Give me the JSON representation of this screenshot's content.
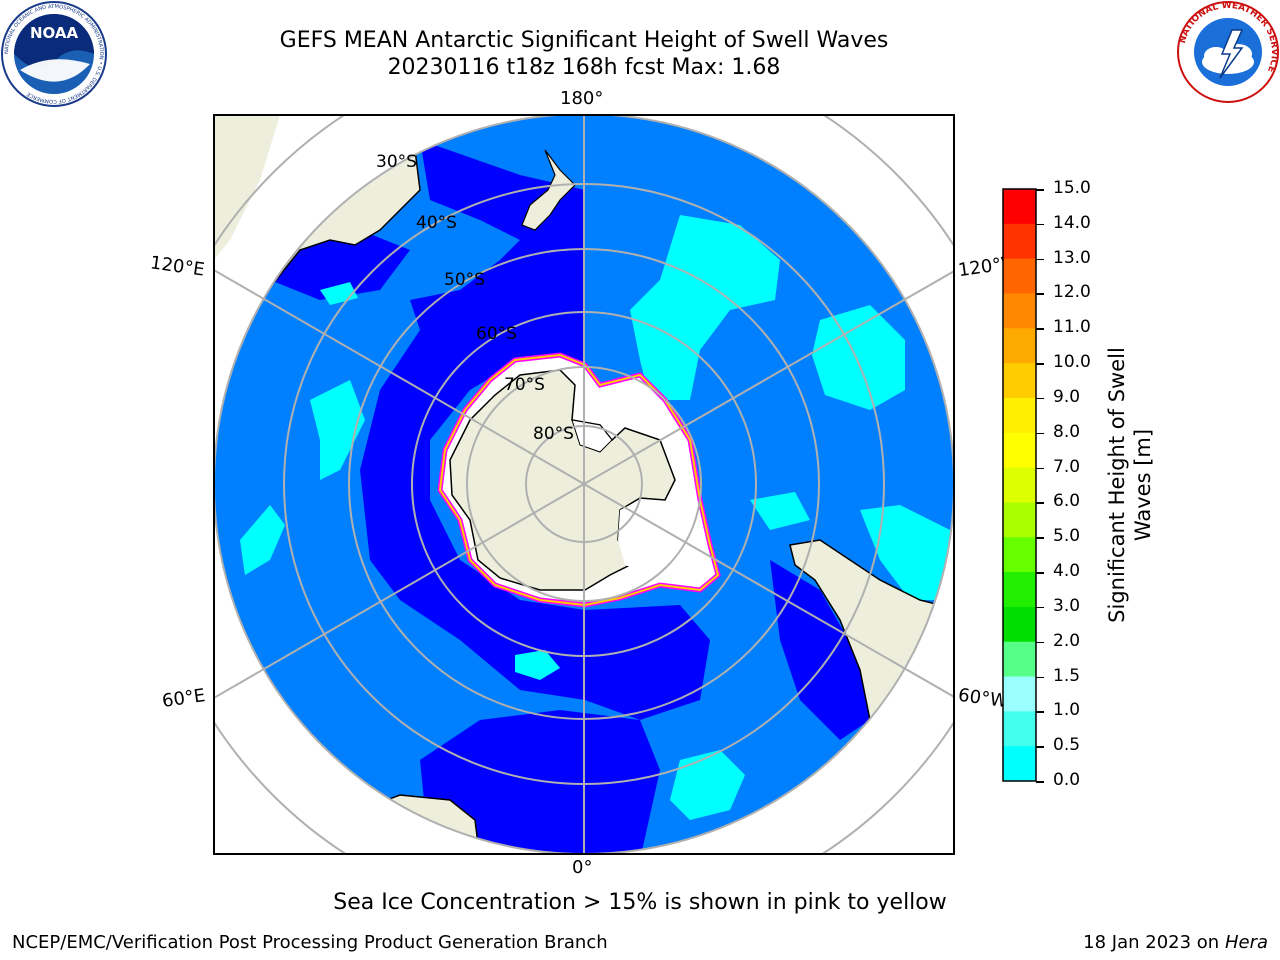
{
  "title": {
    "line1": "GEFS MEAN Antarctic Significant Height of Swell Waves",
    "line2": "20230116 t18z 168h fcst   Max: 1.68"
  },
  "longitude_labels": {
    "top": "180°",
    "bottom": "0°",
    "upper_left": "120°E",
    "upper_right": "120°W",
    "lower_left": "60°E",
    "lower_right": "60°W"
  },
  "latitude_labels": [
    "30°S",
    "40°S",
    "50°S",
    "60°S",
    "70°S",
    "80°S"
  ],
  "colorbar": {
    "label": "Significant Height of Swell Waves [m]",
    "ticks": [
      "15.0",
      "14.0",
      "13.0",
      "12.0",
      "11.0",
      "10.0",
      "9.0",
      "8.0",
      "7.0",
      "6.0",
      "5.0",
      "4.0",
      "3.0",
      "2.0",
      "1.5",
      "1.0",
      "0.5",
      "0.0"
    ],
    "colors": [
      "#ff0000",
      "#ff3300",
      "#ff6600",
      "#ff8800",
      "#ffaa00",
      "#ffcc00",
      "#ffee00",
      "#ffff00",
      "#ddff00",
      "#aaff00",
      "#66ff00",
      "#22ee00",
      "#00dd00",
      "#55ff88",
      "#99ffff",
      "#44ffee",
      "#00ffff",
      "#0080ff",
      "#0000ff"
    ]
  },
  "logos": {
    "noaa": "NOAA",
    "noaa_ring": "NATIONAL OCEANIC AND ATMOSPHERIC ADMINISTRATION • U.S. DEPARTMENT OF COMMERCE",
    "nws_ring": "NATIONAL WEATHER SERVICE"
  },
  "caption": "Sea Ice Concentration > 15% is shown in pink to yellow",
  "footer": {
    "left": "NCEP/EMC/Verification Post Processing Product Generation Branch",
    "right_prefix": "18 Jan 2023 on ",
    "right_italic": "Hera"
  },
  "map_colors": {
    "ocean_low": "#0000ff",
    "ocean_mid": "#0080ff",
    "ocean_high": "#00ffff",
    "land": "#eeeedd",
    "grid": "#b0b0b0"
  }
}
